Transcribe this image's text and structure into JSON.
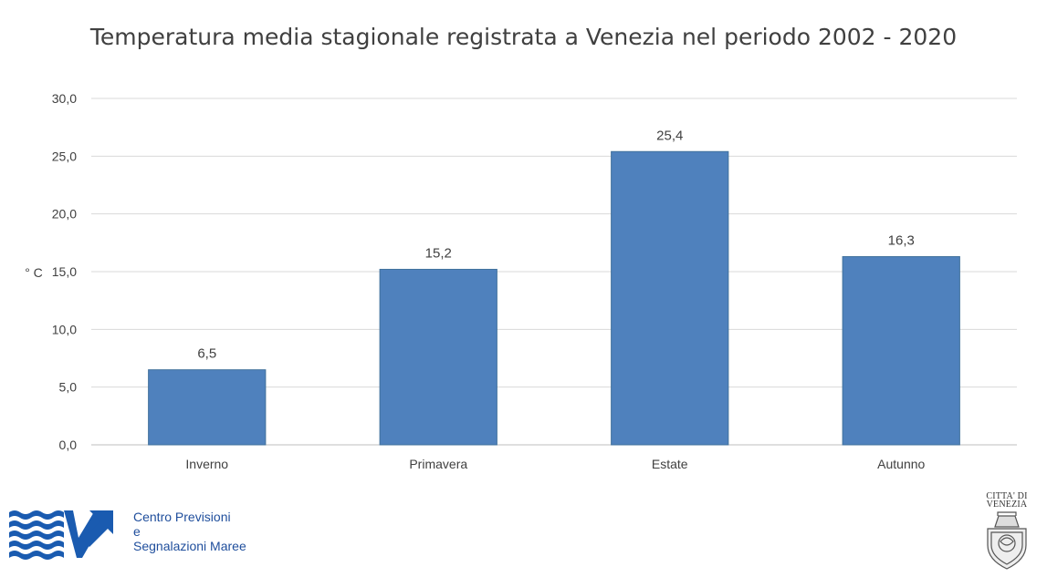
{
  "chart_data": {
    "type": "bar",
    "title": "Temperatura media stagionale registrata a Venezia nel periodo 2002 - 2020",
    "ylabel": "° C",
    "xlabel": "",
    "categories": [
      "Inverno",
      "Primavera",
      "Estate",
      "Autunno"
    ],
    "values": [
      6.5,
      15.2,
      25.4,
      16.3
    ],
    "data_labels": [
      "6,5",
      "15,2",
      "25,4",
      "16,3"
    ],
    "yticks": [
      0,
      5,
      10,
      15,
      20,
      25,
      30
    ],
    "ytick_labels": [
      "0,0",
      "5,0",
      "10,0",
      "15,0",
      "20,0",
      "25,0",
      "30,0"
    ],
    "ylim": [
      0,
      30
    ],
    "grid": true,
    "legend": "none",
    "bar_color": "#4f81bd"
  },
  "footer": {
    "org_lines": [
      "Centro Previsioni",
      "e",
      "Segnalazioni Maree"
    ],
    "org_color": "#1f4e9c",
    "city_lines": [
      "CITTA' DI",
      "VENEZIA"
    ]
  }
}
